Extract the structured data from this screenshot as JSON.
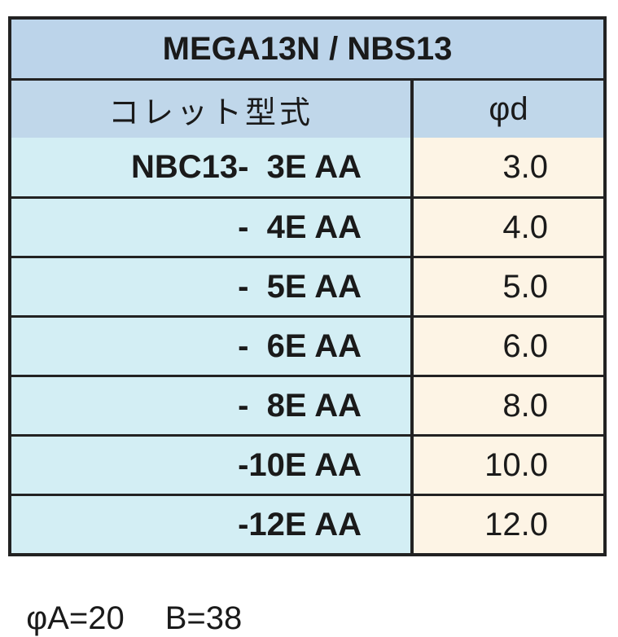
{
  "table": {
    "title": "MEGA13N / NBS13",
    "header": [
      "コレット型式",
      "φd"
    ],
    "rows": [
      [
        "NBC13-  3E AA",
        "3.0"
      ],
      [
        "-  4E AA",
        "4.0"
      ],
      [
        "-  5E AA",
        "5.0"
      ],
      [
        "-  6E AA",
        "6.0"
      ],
      [
        "-  8E AA",
        "8.0"
      ],
      [
        "-10E AA",
        "10.0"
      ],
      [
        "-12E AA",
        "12.0"
      ]
    ]
  },
  "footer": [
    "φA=20",
    "B=38"
  ]
}
